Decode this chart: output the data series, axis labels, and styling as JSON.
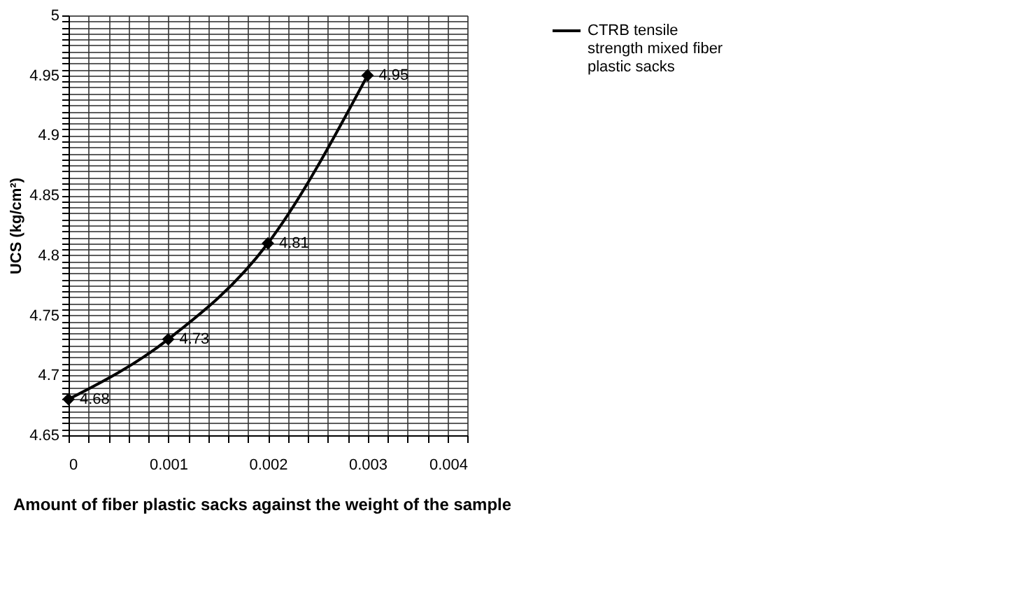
{
  "chart_data": {
    "type": "line",
    "xlabel": "Amount of fiber plastic sacks against the weight of the sample",
    "ylabel": "UCS (kg/cm²)",
    "x": [
      0,
      0.001,
      0.002,
      0.003
    ],
    "series": [
      {
        "name": "CTRB tensile strength mixed fiber plastic sacks",
        "color": "#000000",
        "values": [
          4.68,
          4.73,
          4.81,
          4.95
        ]
      }
    ],
    "xlim": [
      0,
      0.004
    ],
    "xticks": [
      0,
      {
        "value": 0.0002,
        "label": null
      },
      {
        "value": 0.0004,
        "label": null
      },
      {
        "value": 0.0006,
        "label": null
      },
      {
        "value": 0.0008,
        "label": null
      },
      0.001,
      {
        "value": 0.0012,
        "label": null
      },
      {
        "value": 0.0014,
        "label": null
      },
      {
        "value": 0.0016,
        "label": null
      },
      {
        "value": 0.0018,
        "label": null
      },
      0.002,
      {
        "value": 0.0022,
        "label": null
      },
      {
        "value": 0.0024,
        "label": null
      },
      {
        "value": 0.0026,
        "label": null
      },
      {
        "value": 0.0028,
        "label": null
      },
      0.003,
      {
        "value": 0.0032,
        "label": null
      },
      {
        "value": 0.0034,
        "label": null
      },
      {
        "value": 0.0036,
        "label": null
      },
      {
        "value": 0.0038,
        "label": null
      },
      0.004
    ],
    "ylim": [
      4.65,
      5
    ],
    "yticks": [
      4.65,
      {
        "value": 4.655,
        "label": null
      },
      {
        "value": 4.66,
        "label": null
      },
      {
        "value": 4.665,
        "label": null
      },
      {
        "value": 4.67,
        "label": null
      },
      {
        "value": 4.675,
        "label": null
      },
      {
        "value": 4.68,
        "label": null
      },
      {
        "value": 4.685,
        "label": null
      },
      {
        "value": 4.69,
        "label": null
      },
      {
        "value": 4.695,
        "label": null
      },
      4.7,
      {
        "value": 4.705,
        "label": null
      },
      {
        "value": 4.71,
        "label": null
      },
      {
        "value": 4.715,
        "label": null
      },
      {
        "value": 4.72,
        "label": null
      },
      {
        "value": 4.725,
        "label": null
      },
      {
        "value": 4.73,
        "label": null
      },
      {
        "value": 4.735,
        "label": null
      },
      {
        "value": 4.74,
        "label": null
      },
      {
        "value": 4.745,
        "label": null
      },
      4.75,
      {
        "value": 4.755,
        "label": null
      },
      {
        "value": 4.76,
        "label": null
      },
      {
        "value": 4.765,
        "label": null
      },
      {
        "value": 4.77,
        "label": null
      },
      {
        "value": 4.775,
        "label": null
      },
      {
        "value": 4.78,
        "label": null
      },
      {
        "value": 4.785,
        "label": null
      },
      {
        "value": 4.79,
        "label": null
      },
      {
        "value": 4.795,
        "label": null
      },
      4.8,
      {
        "value": 4.805,
        "label": null
      },
      {
        "value": 4.81,
        "label": null
      },
      {
        "value": 4.815,
        "label": null
      },
      {
        "value": 4.82,
        "label": null
      },
      {
        "value": 4.825,
        "label": null
      },
      {
        "value": 4.83,
        "label": null
      },
      {
        "value": 4.835,
        "label": null
      },
      {
        "value": 4.84,
        "label": null
      },
      {
        "value": 4.845,
        "label": null
      },
      4.85,
      {
        "value": 4.855,
        "label": null
      },
      {
        "value": 4.86,
        "label": null
      },
      {
        "value": 4.865,
        "label": null
      },
      {
        "value": 4.87,
        "label": null
      },
      {
        "value": 4.875,
        "label": null
      },
      {
        "value": 4.88,
        "label": null
      },
      {
        "value": 4.885,
        "label": null
      },
      {
        "value": 4.89,
        "label": null
      },
      {
        "value": 4.895,
        "label": null
      },
      4.9,
      {
        "value": 4.905,
        "label": null
      },
      {
        "value": 4.91,
        "label": null
      },
      {
        "value": 4.915,
        "label": null
      },
      {
        "value": 4.92,
        "label": null
      },
      {
        "value": 4.925,
        "label": null
      },
      {
        "value": 4.93,
        "label": null
      },
      {
        "value": 4.935,
        "label": null
      },
      {
        "value": 4.94,
        "label": null
      },
      {
        "value": 4.945,
        "label": null
      },
      4.95,
      {
        "value": 4.955,
        "label": null
      },
      {
        "value": 4.96,
        "label": null
      },
      {
        "value": 4.965,
        "label": null
      },
      {
        "value": 4.97,
        "label": null
      },
      {
        "value": 4.975,
        "label": null
      },
      {
        "value": 4.98,
        "label": null
      },
      {
        "value": 4.985,
        "label": null
      },
      {
        "value": 4.99,
        "label": null
      },
      {
        "value": 4.995,
        "label": null
      },
      5
    ],
    "grid": true,
    "legend": "right",
    "marker": "diamond",
    "line_style": "solid",
    "data_labels": true
  }
}
